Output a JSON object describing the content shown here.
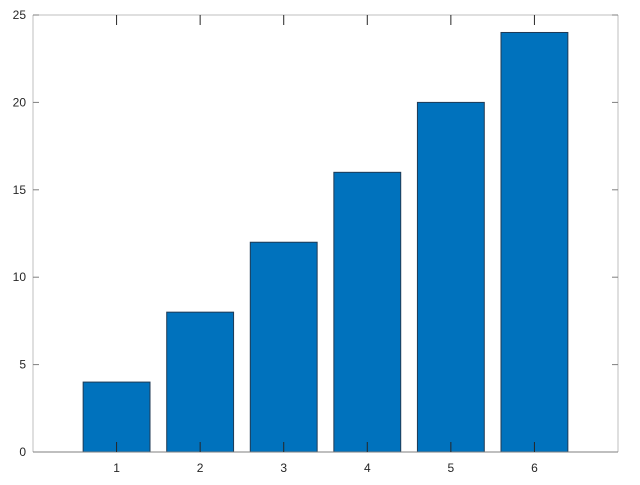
{
  "chart_data": {
    "type": "bar",
    "categories": [
      "1",
      "2",
      "3",
      "4",
      "5",
      "6"
    ],
    "x": [
      1,
      2,
      3,
      4,
      5,
      6
    ],
    "values": [
      4,
      8,
      12,
      16,
      20,
      24
    ],
    "title": "",
    "xlabel": "",
    "ylabel": "",
    "xlim": [
      0,
      7
    ],
    "ylim": [
      0,
      25
    ],
    "yticks": [
      "0",
      "5",
      "10",
      "15",
      "20",
      "25"
    ],
    "xticks": [
      "1",
      "2",
      "3",
      "4",
      "5",
      "6"
    ],
    "bar_width": 0.8,
    "grid": false,
    "box": true,
    "colors": {
      "bar_fill": "#0072bd",
      "bar_edge": "#1f3a55",
      "axis": "#262626",
      "box": "#bfbfbf"
    }
  }
}
